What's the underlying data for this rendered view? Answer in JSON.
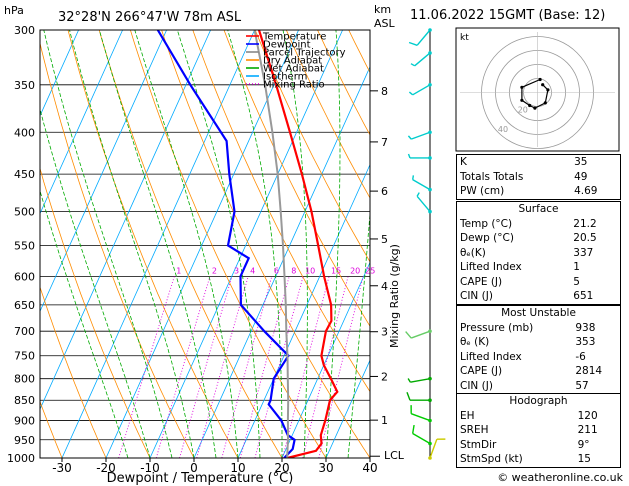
{
  "header": {
    "y_unit": "hPa",
    "location": "32°28'N  266°47'W  78m  ASL",
    "km_unit": "km",
    "asl_unit": "ASL",
    "date": "11.06.2022  15GMT  (Base: 12)"
  },
  "chart_data": {
    "type": "line",
    "title": "",
    "xlabel": "Dewpoint / Temperature (°C)",
    "ylabel": "hPa",
    "mixing_ratio_label": "Mixing Ratio (g/kg)",
    "pressure_levels": [
      300,
      350,
      400,
      450,
      500,
      550,
      600,
      650,
      700,
      750,
      800,
      850,
      900,
      950,
      1000
    ],
    "x_ticks": [
      -30,
      -20,
      -10,
      0,
      10,
      20,
      30,
      40
    ],
    "xlim": [
      -35,
      40
    ],
    "ylim": [
      1000,
      300
    ],
    "skew_per_decade": 45,
    "km_ticks": [
      {
        "km": 8,
        "p": 356
      },
      {
        "km": 7,
        "p": 411
      },
      {
        "km": 6,
        "p": 472
      },
      {
        "km": 5,
        "p": 540
      },
      {
        "km": 4,
        "p": 616
      },
      {
        "km": 3,
        "p": 701
      },
      {
        "km": 2,
        "p": 795
      },
      {
        "km": 1,
        "p": 899
      }
    ],
    "lcl_label": "LCL",
    "lcl_pressure": 995,
    "mixing_ratio_values": [
      1,
      2,
      3,
      4,
      6,
      8,
      10,
      15,
      20,
      25
    ],
    "mixing_ratio_labels": [
      "1",
      "2",
      "3",
      "4",
      "6",
      "8",
      "10",
      "15",
      "20",
      "25"
    ],
    "legend": [
      {
        "label": "Temperature",
        "color": "#ff0000",
        "style": "solid"
      },
      {
        "label": "Dewpoint",
        "color": "#0000ff",
        "style": "solid"
      },
      {
        "label": "Parcel Trajectory",
        "color": "#888888",
        "style": "solid"
      },
      {
        "label": "Dry Adiabat",
        "color": "#ff8c00",
        "style": "solid"
      },
      {
        "label": "Wet Adiabat",
        "color": "#00aa00",
        "style": "solid"
      },
      {
        "label": "Isotherm",
        "color": "#00aaff",
        "style": "solid"
      },
      {
        "label": "Mixing Ratio",
        "color": "#dd00dd",
        "style": "dotted"
      }
    ],
    "series": [
      {
        "name": "Temperature",
        "color": "#ff0000",
        "points": [
          [
            1000,
            21.2
          ],
          [
            980,
            27.0
          ],
          [
            960,
            27.5
          ],
          [
            938,
            26.5
          ],
          [
            900,
            26.0
          ],
          [
            850,
            25.0
          ],
          [
            830,
            25.8
          ],
          [
            800,
            23.0
          ],
          [
            770,
            20.0
          ],
          [
            750,
            18.5
          ],
          [
            700,
            17.0
          ],
          [
            680,
            17.2
          ],
          [
            650,
            15.5
          ],
          [
            600,
            11.0
          ],
          [
            550,
            6.5
          ],
          [
            500,
            1.5
          ],
          [
            450,
            -4.5
          ],
          [
            400,
            -11.5
          ],
          [
            350,
            -19.5
          ],
          [
            300,
            -29.0
          ]
        ]
      },
      {
        "name": "Dewpoint",
        "color": "#0000ff",
        "points": [
          [
            1000,
            20.5
          ],
          [
            975,
            21.5
          ],
          [
            950,
            21.0
          ],
          [
            938,
            19.0
          ],
          [
            900,
            16.0
          ],
          [
            860,
            11.5
          ],
          [
            850,
            11.5
          ],
          [
            800,
            10.0
          ],
          [
            750,
            11.0
          ],
          [
            700,
            3.0
          ],
          [
            650,
            -5.0
          ],
          [
            600,
            -8.0
          ],
          [
            570,
            -8.0
          ],
          [
            550,
            -14.0
          ],
          [
            500,
            -16.0
          ],
          [
            450,
            -21.0
          ],
          [
            410,
            -25.0
          ],
          [
            350,
            -39.0
          ],
          [
            300,
            -52.0
          ]
        ]
      },
      {
        "name": "Parcel Trajectory",
        "color": "#999999",
        "points": [
          [
            1000,
            21.2
          ],
          [
            995,
            21.0
          ],
          [
            950,
            19.5
          ],
          [
            900,
            17.5
          ],
          [
            850,
            15.5
          ],
          [
            800,
            13.2
          ],
          [
            750,
            10.8
          ],
          [
            700,
            8.0
          ],
          [
            650,
            5.2
          ],
          [
            600,
            2.0
          ],
          [
            550,
            -1.5
          ],
          [
            500,
            -5.5
          ],
          [
            450,
            -10.0
          ],
          [
            400,
            -15.5
          ],
          [
            350,
            -22.0
          ],
          [
            300,
            -30.0
          ]
        ]
      }
    ],
    "wind_barbs": [
      {
        "p": 1000,
        "dir": 20,
        "spd": 10,
        "color": "#cccc00"
      },
      {
        "p": 960,
        "dir": 300,
        "spd": 10,
        "color": "#00cc00"
      },
      {
        "p": 900,
        "dir": 290,
        "spd": 10,
        "color": "#00cc00"
      },
      {
        "p": 850,
        "dir": 270,
        "spd": 10,
        "color": "#00aa00"
      },
      {
        "p": 800,
        "dir": 260,
        "spd": 5,
        "color": "#00aa00"
      },
      {
        "p": 700,
        "dir": 250,
        "spd": 10,
        "color": "#66cc66"
      },
      {
        "p": 500,
        "dir": 320,
        "spd": 5,
        "color": "#00cccc"
      },
      {
        "p": 470,
        "dir": 300,
        "spd": 5,
        "color": "#00cccc"
      },
      {
        "p": 430,
        "dir": 270,
        "spd": 5,
        "color": "#00cccc"
      },
      {
        "p": 400,
        "dir": 250,
        "spd": 5,
        "color": "#00cccc"
      },
      {
        "p": 350,
        "dir": 240,
        "spd": 5,
        "color": "#00cccc"
      },
      {
        "p": 320,
        "dir": 230,
        "spd": 5,
        "color": "#00cccc"
      },
      {
        "p": 300,
        "dir": 220,
        "spd": 10,
        "color": "#00cccc"
      }
    ]
  },
  "hodograph": {
    "unit": "kt",
    "ring_labels": [
      "20",
      "40"
    ],
    "points_u": [
      2,
      4,
      3,
      -1,
      -3,
      -6,
      -6,
      1
    ],
    "points_v": [
      3,
      1,
      -4,
      -6,
      -5,
      -3,
      2,
      5
    ]
  },
  "indices": {
    "block1": [
      {
        "label": "K",
        "value": "35"
      },
      {
        "label": "Totals Totals",
        "value": "49"
      },
      {
        "label": "PW (cm)",
        "value": "4.69"
      }
    ],
    "surface": {
      "title": "Surface",
      "rows": [
        {
          "label": "Temp (°C)",
          "value": "21.2"
        },
        {
          "label": "Dewp (°C)",
          "value": "20.5"
        },
        {
          "label": "θₑ(K)",
          "value": "337"
        },
        {
          "label": "Lifted Index",
          "value": "1"
        },
        {
          "label": "CAPE (J)",
          "value": "5"
        },
        {
          "label": "CIN (J)",
          "value": "651"
        }
      ]
    },
    "most_unstable": {
      "title": "Most Unstable",
      "rows": [
        {
          "label": "Pressure (mb)",
          "value": "938"
        },
        {
          "label": "θₑ (K)",
          "value": "353"
        },
        {
          "label": "Lifted Index",
          "value": "-6"
        },
        {
          "label": "CAPE (J)",
          "value": "2814"
        },
        {
          "label": "CIN (J)",
          "value": "57"
        }
      ]
    },
    "hodograph": {
      "title": "Hodograph",
      "rows": [
        {
          "label": "EH",
          "value": "120"
        },
        {
          "label": "SREH",
          "value": "211"
        },
        {
          "label": "StmDir",
          "value": "9°"
        },
        {
          "label": "StmSpd (kt)",
          "value": "15"
        }
      ]
    }
  },
  "footer": {
    "copyright": "© weatheronline.co.uk"
  }
}
